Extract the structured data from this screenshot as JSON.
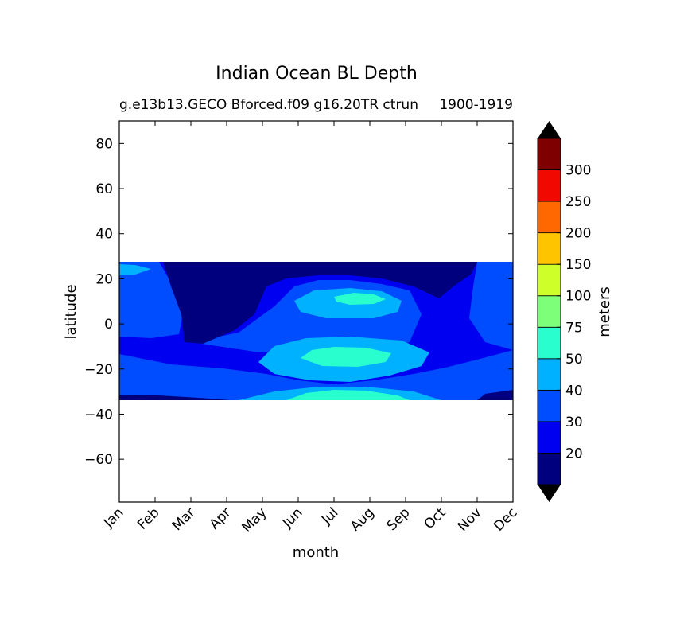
{
  "chart_data": {
    "type": "heatmap",
    "title": "Indian Ocean BL Depth",
    "subtitle_left": "g.e13b13.GECO Bforced.f09 g16.20TR ctrun",
    "subtitle_right": "1900-1919",
    "xlabel": "month",
    "ylabel": "latitude",
    "x_ticks": [
      "Jan",
      "Feb",
      "Mar",
      "Apr",
      "May",
      "Jun",
      "Jul",
      "Aug",
      "Sep",
      "Oct",
      "Nov",
      "Dec"
    ],
    "y_ticks": [
      "80",
      "60",
      "40",
      "20",
      "0",
      "−20",
      "−40",
      "−60"
    ],
    "ylim": [
      -79,
      90
    ],
    "data_lat_range": [
      -34,
      27
    ],
    "colorbar": {
      "label": "meters",
      "levels": [
        20,
        30,
        40,
        50,
        75,
        100,
        150,
        200,
        250,
        300
      ],
      "tick_labels": [
        "20",
        "30",
        "40",
        "50",
        "75",
        "100",
        "150",
        "200",
        "250",
        "300"
      ],
      "colors": [
        "#00007f",
        "#0000f1",
        "#004dff",
        "#00b1ff",
        "#29ffce",
        "#7dff7a",
        "#ceff29",
        "#ffc400",
        "#ff6800",
        "#f10800",
        "#7f0000"
      ],
      "extend": "both"
    },
    "field_fill": {
      "base": "#0000f1",
      "regions": [
        {
          "level": "30-40",
          "color": "#004dff",
          "description": "broad band south of equator"
        },
        {
          "level": "<20",
          "color": "#00007f",
          "description": "shallow layer north of equator Feb-Oct"
        },
        {
          "level": "40-50",
          "color": "#00b1ff",
          "description": "Jun-Sep maxima"
        },
        {
          "level": "50-75",
          "color": "#29ffce",
          "description": "Jul-Aug cores"
        }
      ]
    }
  }
}
